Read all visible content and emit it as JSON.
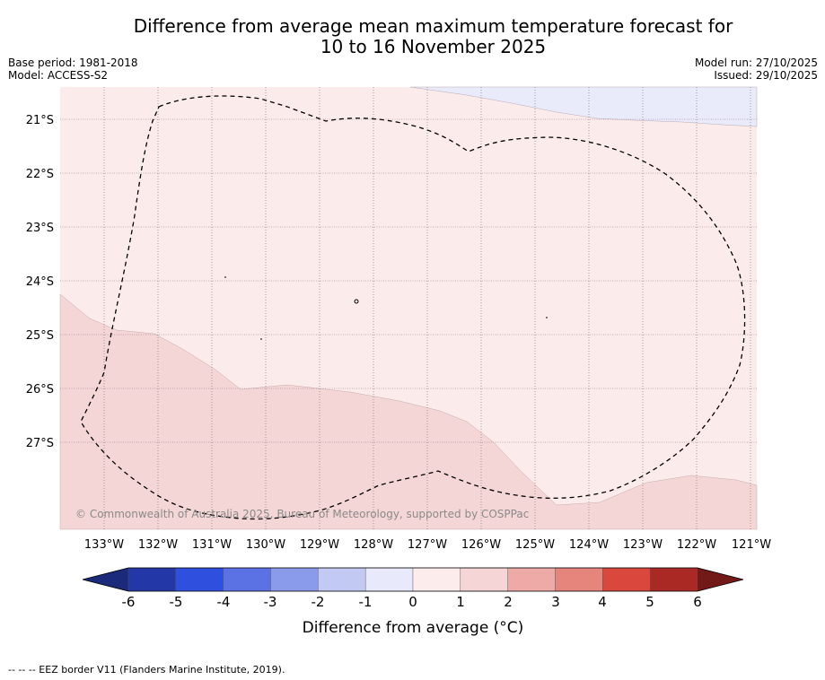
{
  "title_line1": "Difference from average mean maximum temperature forecast for",
  "title_line2": "10 to 16 November 2025",
  "meta_left": [
    "Base period: 1981-2018",
    "Model: ACCESS-S2"
  ],
  "meta_right": [
    "Model run: 27/10/2025",
    "Issued: 29/10/2025"
  ],
  "lat_labels": [
    "21°S",
    "22°S",
    "23°S",
    "24°S",
    "25°S",
    "26°S",
    "27°S"
  ],
  "lon_labels": [
    "133°W",
    "132°W",
    "131°W",
    "130°W",
    "129°W",
    "128°W",
    "127°W",
    "126°W",
    "125°W",
    "124°W",
    "123°W",
    "122°W",
    "121°W"
  ],
  "copyright": "© Commonwealth of Australia 2025, Bureau of Meteorology, supported by COSPPac",
  "colorbar": {
    "ticks": [
      "-6",
      "-5",
      "-4",
      "-3",
      "-2",
      "-1",
      "0",
      "1",
      "2",
      "3",
      "4",
      "5",
      "6"
    ],
    "colors": [
      "#2337a7",
      "#2f4fdf",
      "#5b72e4",
      "#8b9bec",
      "#c2c9f3",
      "#e8eafb",
      "#fcecec",
      "#f5d5d5",
      "#edaaa6",
      "#e6857c",
      "#d9473d",
      "#ab2924"
    ],
    "low_extend": "#1b2a7b",
    "high_extend": "#721a17",
    "label": "Difference from average (°C)"
  },
  "map_colors": {
    "ocean_base": "#fbebeb",
    "warm_band": "#f5d6d6",
    "cool_patch": "#e9ebfb"
  },
  "footer": "-- -- -- EEZ border V11 (Flanders Marine Institute, 2019)."
}
